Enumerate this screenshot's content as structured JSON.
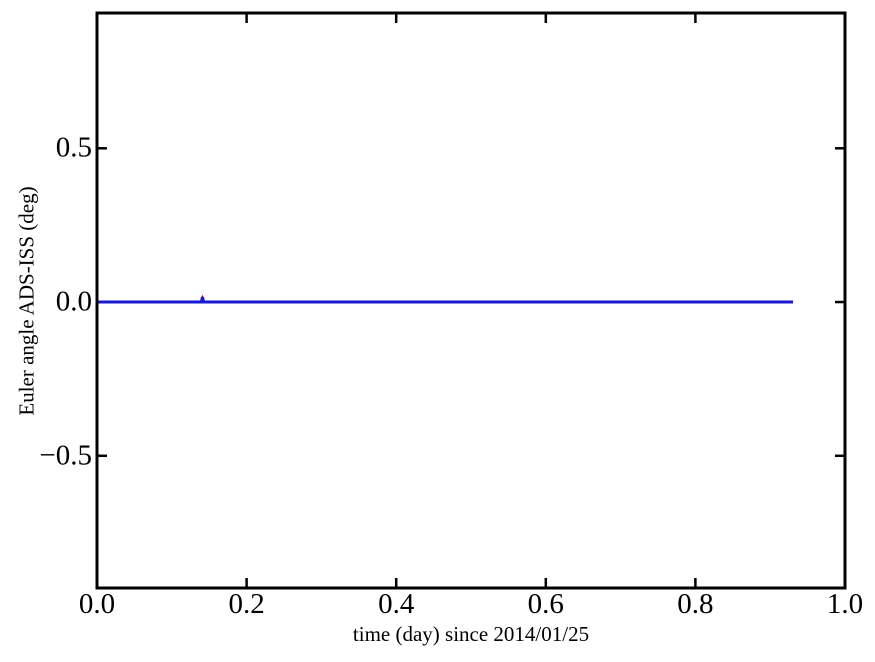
{
  "figure": {
    "background_color": "#ffffff",
    "frame_color": "#000000",
    "tick_color": "#000000"
  },
  "chart_data": {
    "type": "line",
    "xlabel": "time (day) since 2014/01/25",
    "ylabel": "Euler angle ADS-ISS (deg)",
    "xlim": [
      0.0,
      1.0
    ],
    "ylim": [
      -0.93,
      0.94
    ],
    "grid": false,
    "legend": null,
    "x_ticks": [
      0.0,
      0.2,
      0.4,
      0.6,
      0.8,
      1.0
    ],
    "x_tick_labels": [
      "0.0",
      "0.2",
      "0.4",
      "0.6",
      "0.8",
      "1.0"
    ],
    "y_ticks": [
      0.5,
      0.0,
      -0.5
    ],
    "y_tick_labels": [
      "0.5",
      "0.0",
      "−0.5"
    ],
    "tick_direction": "in",
    "series": [
      {
        "name": "series-red-underlay",
        "color": "#cc0000",
        "linewidth": 3,
        "points": [
          [
            0.0,
            0.0
          ],
          [
            0.1395,
            0.0
          ],
          [
            0.141,
            0.01
          ],
          [
            0.1425,
            0.0
          ],
          [
            0.9305,
            0.0
          ]
        ]
      },
      {
        "name": "series-blue",
        "color": "#1a1ad0",
        "linewidth": 3,
        "points": [
          [
            0.0,
            0.0
          ],
          [
            0.1395,
            0.0
          ],
          [
            0.141,
            0.016
          ],
          [
            0.1425,
            0.0
          ],
          [
            0.9305,
            0.0
          ]
        ]
      }
    ]
  }
}
